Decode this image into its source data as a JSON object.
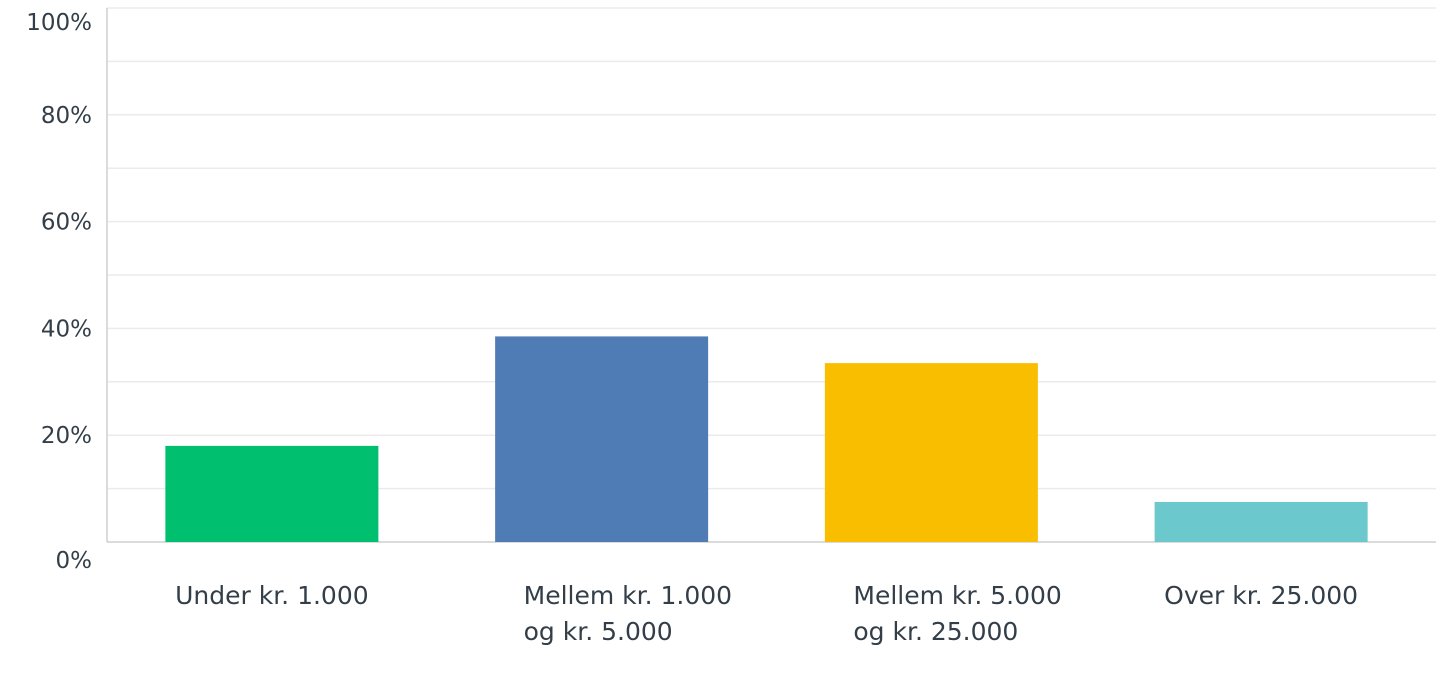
{
  "chart_data": {
    "type": "bar",
    "categories": [
      "Under kr. 1.000",
      "Mellem kr. 1.000 og kr. 5.000",
      "Mellem kr. 5.000 og kr. 25.000",
      "Over kr. 25.000"
    ],
    "values": [
      18,
      38.5,
      33.5,
      7.5
    ],
    "ylim": [
      0,
      100
    ],
    "yticks": [
      "0%",
      "20%",
      "40%",
      "60%",
      "80%",
      "100%"
    ],
    "ytick_values": [
      0,
      20,
      40,
      60,
      80,
      100
    ],
    "grid": true,
    "colors": [
      "#00bf6f",
      "#507cb6",
      "#f9be00",
      "#6bc8cd"
    ],
    "title": "",
    "xlabel": "",
    "ylabel": ""
  }
}
